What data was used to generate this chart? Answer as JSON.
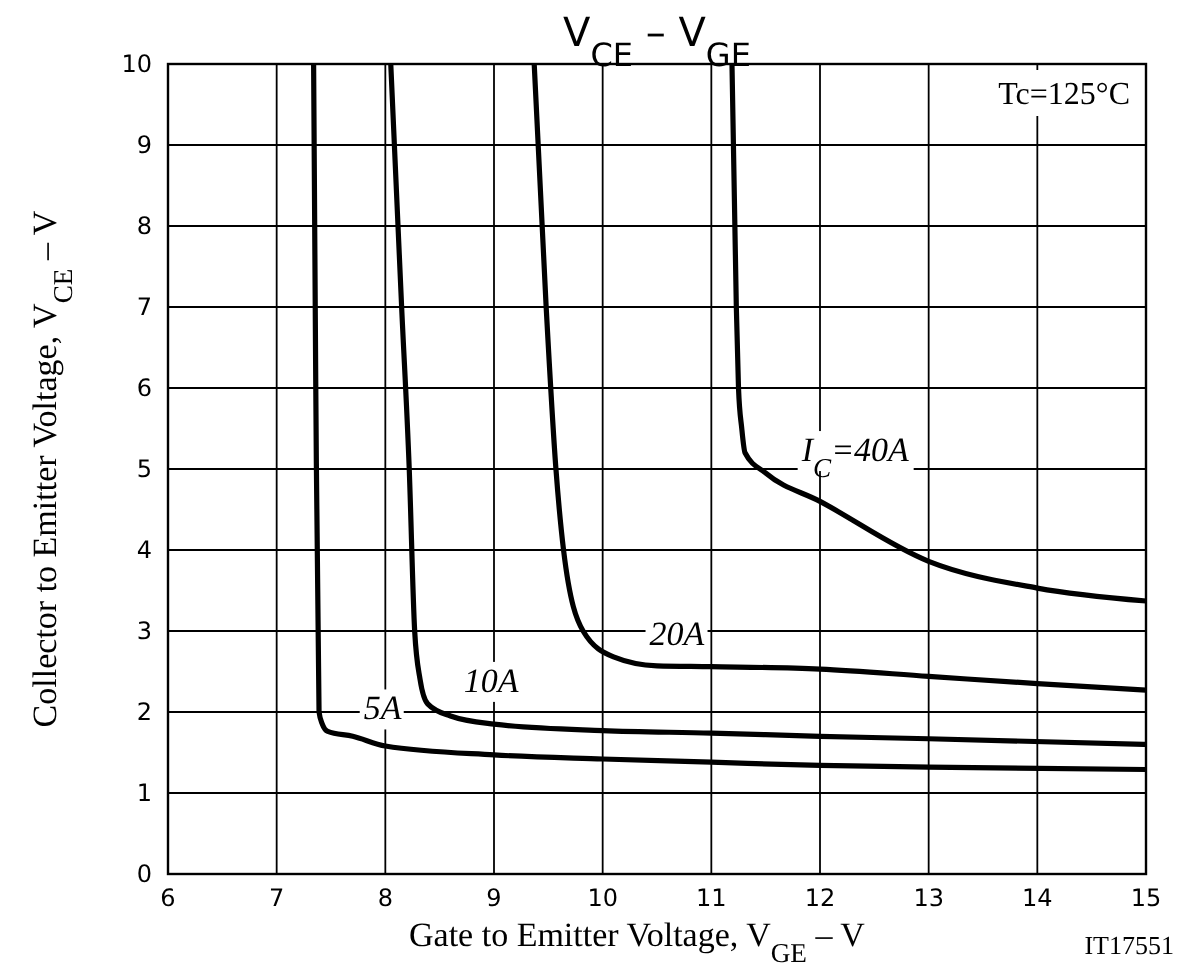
{
  "chart_data": {
    "type": "line",
    "title": "V$_{CE}$ – V$_{GE}$",
    "xlabel": "Gate to Emitter Voltage, V$_{GE}$ – V",
    "ylabel": "Collector to Emitter Voltage, V$_{CE}$ – V",
    "xlim": [
      6,
      15
    ],
    "ylim": [
      0,
      10
    ],
    "xticks": [
      6,
      7,
      8,
      9,
      10,
      11,
      12,
      13,
      14,
      15
    ],
    "yticks": [
      0,
      1,
      2,
      3,
      4,
      5,
      6,
      7,
      8,
      9,
      10
    ],
    "grid": true,
    "line_style": "solid",
    "marker": "none",
    "series": [
      {
        "name": "5A",
        "color": "#000000",
        "x": [
          7.34,
          7.36,
          7.39,
          7.42,
          7.47,
          7.7,
          8,
          9,
          10,
          11,
          12,
          13,
          15
        ],
        "values": [
          10,
          6,
          2,
          1.85,
          1.76,
          1.7,
          1.58,
          1.47,
          1.42,
          1.38,
          1.34,
          1.32,
          1.29
        ]
      },
      {
        "name": "10A",
        "color": "#000000",
        "x": [
          8.05,
          8.15,
          8.22,
          8.27,
          8.32,
          8.39,
          8.6,
          9,
          10,
          11,
          12,
          13,
          15
        ],
        "values": [
          10,
          7,
          5,
          3,
          2.4,
          2.1,
          1.95,
          1.85,
          1.77,
          1.74,
          1.7,
          1.67,
          1.6
        ]
      },
      {
        "name": "20A",
        "color": "#000000",
        "x": [
          9.37,
          9.48,
          9.57,
          9.64,
          9.82,
          10.1,
          10.5,
          11,
          12,
          13,
          14,
          15
        ],
        "values": [
          10,
          7,
          5,
          4,
          3,
          2.68,
          2.57,
          2.56,
          2.53,
          2.44,
          2.35,
          2.27
        ]
      },
      {
        "name": "I$_{C}$=40A",
        "color": "#000000",
        "x": [
          11.19,
          11.23,
          11.25,
          11.28,
          11.31,
          11.5,
          12,
          13,
          14,
          15
        ],
        "values": [
          10,
          7,
          6,
          5.5,
          5.2,
          4.95,
          4.6,
          3.86,
          3.53,
          3.37
        ]
      }
    ],
    "annotations": [
      "Tc=125°C",
      "IT17551"
    ]
  }
}
